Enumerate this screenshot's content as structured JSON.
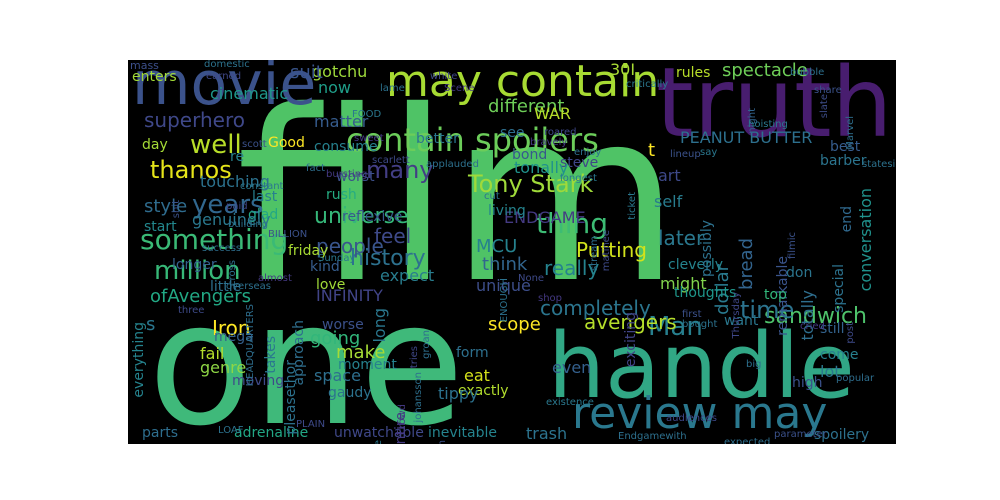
{
  "words": [
    {
      "text": "film",
      "color": "#4fc366"
    },
    {
      "text": "one",
      "color": "#3fb97a"
    },
    {
      "text": "truth",
      "color": "#481d6f"
    },
    {
      "text": "handle",
      "color": "#31a785"
    },
    {
      "text": "movie",
      "color": "#3b528b"
    },
    {
      "text": "may contain",
      "color": "#a7db33"
    },
    {
      "text": "review may",
      "color": "#2a788e"
    },
    {
      "text": "contain spoilers",
      "color": "#6ccd5a"
    },
    {
      "text": "sandwich",
      "color": "#4ec36b"
    },
    {
      "text": "Tony Stark",
      "color": "#9fda3a"
    },
    {
      "text": "thing",
      "color": "#3dbc74"
    },
    {
      "text": "something",
      "color": "#3aba76"
    },
    {
      "text": "million",
      "color": "#37b878"
    },
    {
      "text": "history",
      "color": "#2d718e"
    },
    {
      "text": "years",
      "color": "#31678e"
    },
    {
      "text": "superhero",
      "color": "#3f4889"
    },
    {
      "text": "thanos",
      "color": "#e5e419"
    },
    {
      "text": "well",
      "color": "#b8de29"
    },
    {
      "text": "Man",
      "color": "#277f8e"
    },
    {
      "text": "time",
      "color": "#2c738e"
    },
    {
      "text": "universe",
      "color": "#35b779"
    },
    {
      "text": "people",
      "color": "#39558c"
    },
    {
      "text": "feel",
      "color": "#3e4a89"
    },
    {
      "text": "really",
      "color": "#25838e"
    },
    {
      "text": "Putting",
      "color": "#d2e21b"
    },
    {
      "text": "later",
      "color": "#2a788e"
    },
    {
      "text": "completely",
      "color": "#2b758e"
    },
    {
      "text": "avengers",
      "color": "#b5de2b"
    },
    {
      "text": "PEANUT BUTTER",
      "color": "#2d708e"
    },
    {
      "text": "spectacle",
      "color": "#6ece58"
    },
    {
      "text": "gotchu",
      "color": "#9dd93b"
    },
    {
      "text": "suit",
      "color": "#39558c"
    },
    {
      "text": "now",
      "color": "#1f9e89"
    },
    {
      "text": "different",
      "color": "#6ece58"
    },
    {
      "text": "matter",
      "color": "#365c8d"
    },
    {
      "text": "WAR",
      "color": "#b5de2b"
    },
    {
      "text": "bond",
      "color": "#38588c"
    },
    {
      "text": "see",
      "color": "#2e6f8e"
    },
    {
      "text": "consume",
      "color": "#26818e"
    },
    {
      "text": "steve",
      "color": "#3f4788"
    },
    {
      "text": "tonally",
      "color": "#20928c"
    },
    {
      "text": "art",
      "color": "#3e4989"
    },
    {
      "text": "self",
      "color": "#287c8e"
    },
    {
      "text": "ENDGAME",
      "color": "#443a83"
    },
    {
      "text": "many",
      "color": "#433e85"
    },
    {
      "text": "Good",
      "color": "#fde725"
    },
    {
      "text": "day",
      "color": "#a5db36"
    },
    {
      "text": "touching",
      "color": "#2c728e"
    },
    {
      "text": "cinematic",
      "color": "#1f988b"
    },
    {
      "text": "enters",
      "color": "#a2da37"
    },
    {
      "text": "mass",
      "color": "#3c4f8a"
    },
    {
      "text": "style",
      "color": "#2f6c8e"
    },
    {
      "text": "last",
      "color": "#27808e"
    },
    {
      "text": "glad",
      "color": "#22a785"
    },
    {
      "text": "genuinely",
      "color": "#2a788e"
    },
    {
      "text": "start",
      "color": "#23888e"
    },
    {
      "text": "ofAvengers",
      "color": "#22a884"
    },
    {
      "text": "s",
      "color": "#2a768e"
    },
    {
      "text": "INFINITY",
      "color": "#414487"
    },
    {
      "text": "MCU",
      "color": "#26828e"
    },
    {
      "text": "expect",
      "color": "#287d8e"
    },
    {
      "text": "kind",
      "color": "#365d8d"
    },
    {
      "text": "love",
      "color": "#a0da39"
    },
    {
      "text": "think",
      "color": "#32658e"
    },
    {
      "text": "unique",
      "color": "#3d4e8a"
    },
    {
      "text": "living",
      "color": "#25848e"
    },
    {
      "text": "reflexive",
      "color": "#38598c"
    },
    {
      "text": "rush",
      "color": "#25ac82"
    },
    {
      "text": "friday",
      "color": "#a8db34"
    },
    {
      "text": "dollar",
      "color": "#29798e"
    },
    {
      "text": "bread",
      "color": "#32648e"
    },
    {
      "text": "might",
      "color": "#81d34d"
    },
    {
      "text": "cleverly",
      "color": "#25848e"
    },
    {
      "text": "thoughts",
      "color": "#1f978b"
    },
    {
      "text": "possibly",
      "color": "#2d718e"
    },
    {
      "text": "remarkable",
      "color": "#3a548c"
    },
    {
      "text": "conversation",
      "color": "#20928c"
    },
    {
      "text": "barber",
      "color": "#2b748e"
    },
    {
      "text": "best",
      "color": "#365c8d"
    },
    {
      "text": "end",
      "color": "#30698e"
    },
    {
      "text": "don",
      "color": "#2b758e"
    },
    {
      "text": "30I",
      "color": "#a8db34"
    },
    {
      "text": "rules",
      "color": "#b8de29"
    },
    {
      "text": "t",
      "color": "#fde725"
    },
    {
      "text": "totally",
      "color": "#2e6e8e"
    },
    {
      "text": "top",
      "color": "#32b67a"
    },
    {
      "text": "still",
      "color": "#33628d"
    },
    {
      "text": "want",
      "color": "#2a778e"
    },
    {
      "text": "special",
      "color": "#2c728e"
    },
    {
      "text": "come",
      "color": "#27808e"
    },
    {
      "text": "high",
      "color": "#3b518b"
    },
    {
      "text": "lot",
      "color": "#2a788e"
    },
    {
      "text": "spoilery",
      "color": "#2d718e"
    },
    {
      "text": "exciting",
      "color": "#414487"
    },
    {
      "text": "even",
      "color": "#34608d"
    },
    {
      "text": "eat",
      "color": "#d5e21a"
    },
    {
      "text": "exactly",
      "color": "#b2dd2d"
    },
    {
      "text": "scope",
      "color": "#fde725"
    },
    {
      "text": "form",
      "color": "#2d708e"
    },
    {
      "text": "trash",
      "color": "#2c738e"
    },
    {
      "text": "inevitable",
      "color": "#25848e"
    },
    {
      "text": "unwatchable",
      "color": "#3f4889"
    },
    {
      "text": "adrenaline",
      "color": "#22a785"
    },
    {
      "text": "parts",
      "color": "#2e6e8e"
    },
    {
      "text": "everything",
      "color": "#25838e"
    },
    {
      "text": "Iron",
      "color": "#fde725"
    },
    {
      "text": "going",
      "color": "#32b67a"
    },
    {
      "text": "make",
      "color": "#a5db36"
    },
    {
      "text": "space",
      "color": "#2e6f8e"
    },
    {
      "text": "gaudy",
      "color": "#2c738e"
    },
    {
      "text": "entire",
      "color": "#443983"
    },
    {
      "text": "moment",
      "color": "#26828e"
    },
    {
      "text": "worse",
      "color": "#3b518b"
    },
    {
      "text": "tippy",
      "color": "#2c728e"
    },
    {
      "text": "long",
      "color": "#2a778e"
    },
    {
      "text": "fail",
      "color": "#b5de2b"
    },
    {
      "text": "genre",
      "color": "#8ed645"
    },
    {
      "text": "approach",
      "color": "#2e6e8e"
    },
    {
      "text": "pleasethor",
      "color": "#2c728e"
    },
    {
      "text": "takes",
      "color": "#2a788e"
    },
    {
      "text": "mega",
      "color": "#35608d"
    },
    {
      "text": "moving",
      "color": "#3e4a89"
    },
    {
      "text": "little",
      "color": "#2d708e"
    },
    {
      "text": "longer",
      "color": "#34618d"
    },
    {
      "text": "re",
      "color": "#26828e"
    },
    {
      "text": "worst",
      "color": "#3c4f8a"
    },
    {
      "text": "better",
      "color": "#2a768e"
    },
    {
      "text": "lame",
      "color": "#2c728e"
    },
    {
      "text": "white",
      "color": "#3f4889"
    },
    {
      "text": "Scene",
      "color": "#443983"
    },
    {
      "text": "critically",
      "color": "#2a778e"
    },
    {
      "text": "bubble",
      "color": "#2d708e"
    },
    {
      "text": "share",
      "color": "#3b528b"
    },
    {
      "text": "night",
      "color": "#32648e"
    },
    {
      "text": "hoisting",
      "color": "#2a788e"
    },
    {
      "text": "slate",
      "color": "#3d4d8a"
    },
    {
      "text": "Marvel",
      "color": "#2e6f8e"
    },
    {
      "text": "stateside",
      "color": "#2c728e"
    },
    {
      "text": "say",
      "color": "#2a778e"
    },
    {
      "text": "lineup",
      "color": "#3b528b"
    },
    {
      "text": "enjoy",
      "color": "#2d708e"
    },
    {
      "text": "bravely",
      "color": "#443983"
    },
    {
      "text": "roared",
      "color": "#3f4889"
    },
    {
      "text": "longest",
      "color": "#2a788e"
    },
    {
      "text": "stream",
      "color": "#2e6e8e"
    },
    {
      "text": "matinee",
      "color": "#3e4a89"
    },
    {
      "text": "domestic",
      "color": "#2c738e"
    },
    {
      "text": "earned",
      "color": "#3f4889"
    },
    {
      "text": "scott",
      "color": "#3b518b"
    },
    {
      "text": "fact",
      "color": "#2e6f8e"
    },
    {
      "text": "FOOD",
      "color": "#2a788e"
    },
    {
      "text": "sweet",
      "color": "#443983"
    },
    {
      "text": "scarlett",
      "color": "#3e4a89"
    },
    {
      "text": "applauded",
      "color": "#2d708e"
    },
    {
      "text": "cut",
      "color": "#2c728e"
    },
    {
      "text": "Thursday",
      "color": "#3f4889"
    },
    {
      "text": "ticket",
      "color": "#2a778e"
    },
    {
      "text": "filmic",
      "color": "#3b528b"
    },
    {
      "text": "cried",
      "color": "#443983"
    },
    {
      "text": "popular",
      "color": "#2e6e8e"
    },
    {
      "text": "big",
      "color": "#2d708e"
    },
    {
      "text": "post",
      "color": "#3e4a89"
    },
    {
      "text": "first",
      "color": "#3b518b"
    },
    {
      "text": "bought",
      "color": "#2c728e"
    },
    {
      "text": "shop",
      "color": "#443983"
    },
    {
      "text": "existence",
      "color": "#2a788e"
    },
    {
      "text": "audiences",
      "color": "#3f4889"
    },
    {
      "text": "expected",
      "color": "#2e6f8e"
    },
    {
      "text": "parameter",
      "color": "#3b518b"
    },
    {
      "text": "Endgamewith",
      "color": "#2d708e"
    },
    {
      "text": "PLAIN",
      "color": "#3e4a89"
    },
    {
      "text": "LOAF",
      "color": "#2c728e"
    },
    {
      "text": "Mouse",
      "color": "#2a778e"
    },
    {
      "text": "crowd",
      "color": "#443983"
    },
    {
      "text": "worth",
      "color": "#3b528b"
    },
    {
      "text": "groan",
      "color": "#2e6e8e"
    },
    {
      "text": "tries",
      "color": "#3f4889"
    },
    {
      "text": "johansson",
      "color": "#2d708e"
    },
    {
      "text": "ENOUGH",
      "color": "#2c728e"
    },
    {
      "text": "None",
      "color": "#3e4a89"
    },
    {
      "text": "Sunday",
      "color": "#2a788e"
    },
    {
      "text": "BILLION",
      "color": "#3b518b"
    },
    {
      "text": "success",
      "color": "#2e6f8e"
    },
    {
      "text": "almost",
      "color": "#443983"
    },
    {
      "text": "overseas",
      "color": "#2d708e"
    },
    {
      "text": "paid",
      "color": "#3f4889"
    },
    {
      "text": "building",
      "color": "#2c728e"
    },
    {
      "text": "constant",
      "color": "#2a778e"
    },
    {
      "text": "shit",
      "color": "#3b528b"
    },
    {
      "text": "HEADQUARTERS",
      "color": "#2e6e8e"
    },
    {
      "text": "three",
      "color": "#3e4a89"
    },
    {
      "text": "cross",
      "color": "#2d708e"
    },
    {
      "text": "bursting",
      "color": "#443983"
    }
  ]
}
